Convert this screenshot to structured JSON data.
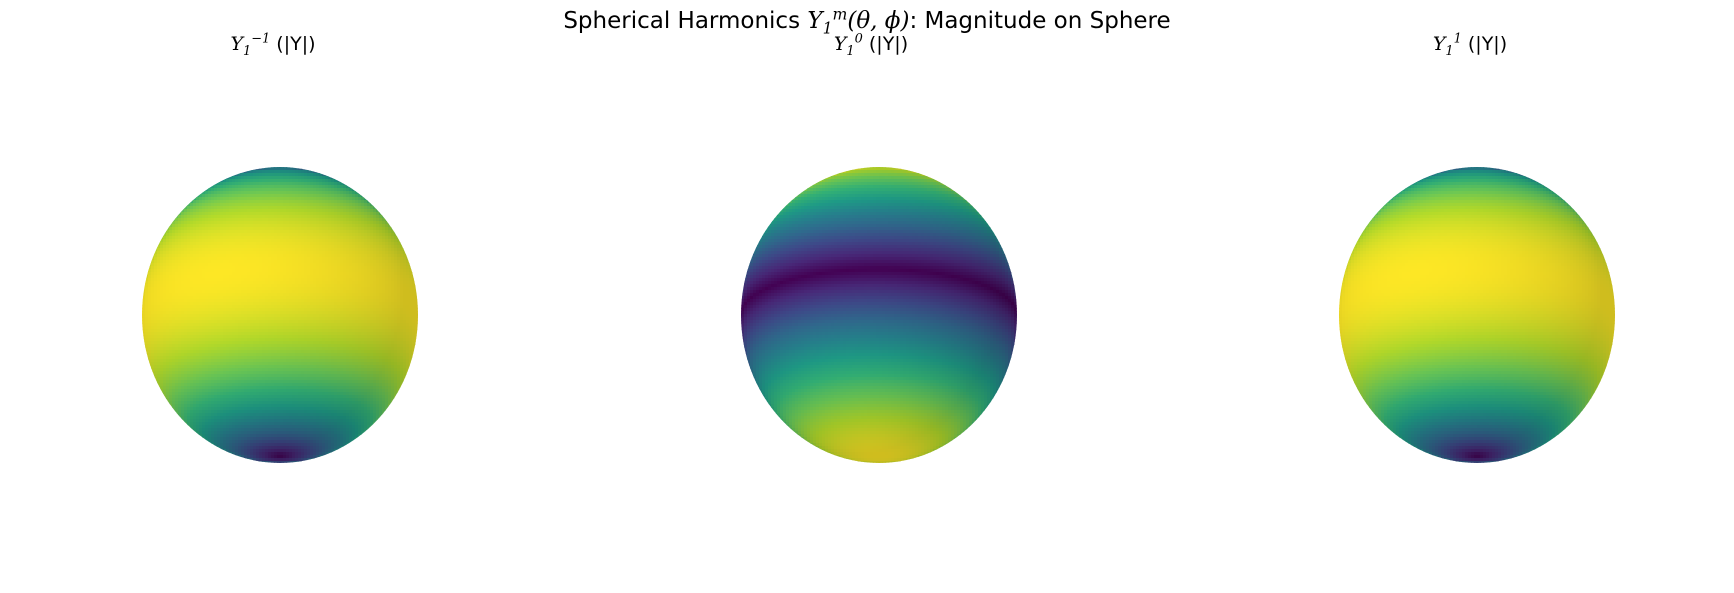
{
  "chart_data": {
    "type": "heatmap",
    "title": {
      "prefix": "Spherical Harmonics ",
      "symbol": "Y",
      "sub": "1",
      "sup": "m",
      "args": "(θ, ϕ)",
      "suffix": ": Magnitude on Sphere"
    },
    "colormap": "viridis",
    "colors": {
      "viridis": [
        "#440154",
        "#482878",
        "#3e4989",
        "#31688e",
        "#26828e",
        "#1f9e89",
        "#35b779",
        "#6ece58",
        "#b5de2b",
        "#fde725"
      ]
    },
    "panels": [
      {
        "title_sym": "Y",
        "title_sub": "1",
        "title_sup": "−1",
        "title_rest": " (|Y|)",
        "l": 1,
        "m": -1,
        "quantity": "|Y|",
        "pattern": "abs-sin-theta"
      },
      {
        "title_sym": "Y",
        "title_sub": "1",
        "title_sup": "0",
        "title_rest": " (|Y|)",
        "l": 1,
        "m": 0,
        "quantity": "|Y|",
        "pattern": "abs-cos-theta"
      },
      {
        "title_sym": "Y",
        "title_sub": "1",
        "title_sup": "1",
        "title_rest": " (|Y|)",
        "l": 1,
        "m": 1,
        "quantity": "|Y|",
        "pattern": "abs-sin-theta"
      }
    ]
  }
}
